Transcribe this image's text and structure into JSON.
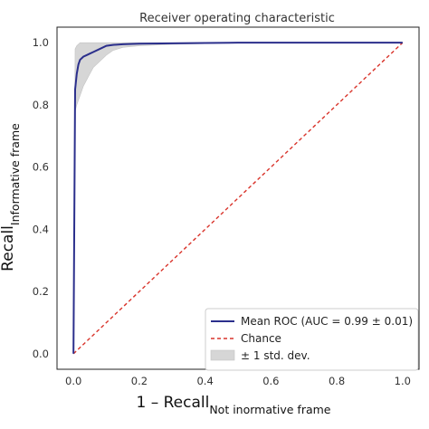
{
  "chart_data": {
    "type": "line",
    "title": "Receiver operating characteristic",
    "xlabel": {
      "main": "1 – Recall",
      "sub": "Not inormative frame"
    },
    "ylabel": {
      "main": "Recall",
      "sub": "Informative frame"
    },
    "xlim": [
      -0.05,
      1.05
    ],
    "ylim": [
      -0.05,
      1.05
    ],
    "xticks": [
      "0.0",
      "0.2",
      "0.4",
      "0.6",
      "0.8",
      "1.0"
    ],
    "yticks": [
      "0.0",
      "0.2",
      "0.4",
      "0.6",
      "0.8",
      "1.0"
    ],
    "grid": false,
    "legend_position": "lower-right",
    "series": [
      {
        "name": "Mean ROC (AUC = 0.99 ± 0.01)",
        "style": "solid",
        "color": "#2b2f8c",
        "x": [
          0.0,
          0.005,
          0.01,
          0.015,
          0.02,
          0.03,
          0.04,
          0.05,
          0.06,
          0.08,
          0.1,
          0.12,
          0.15,
          0.2,
          0.3,
          0.4,
          0.5,
          1.0
        ],
        "y": [
          0.0,
          0.85,
          0.9,
          0.93,
          0.945,
          0.955,
          0.96,
          0.965,
          0.97,
          0.98,
          0.99,
          0.993,
          0.995,
          0.997,
          0.998,
          0.999,
          1.0,
          1.0
        ]
      },
      {
        "name": "Chance",
        "style": "dashed",
        "color": "#d9342b",
        "x": [
          0.0,
          1.0
        ],
        "y": [
          0.0,
          1.0
        ]
      }
    ],
    "band": {
      "name": "± 1 std. dev.",
      "color": "#cfcfcf",
      "x": [
        0.0,
        0.005,
        0.01,
        0.02,
        0.03,
        0.04,
        0.05,
        0.06,
        0.08,
        0.1,
        0.12,
        0.15,
        0.2,
        0.3,
        0.4,
        0.5,
        1.0
      ],
      "upper": [
        0.0,
        0.98,
        0.99,
        1.0,
        1.0,
        1.0,
        1.0,
        1.0,
        1.0,
        1.0,
        1.0,
        1.0,
        1.0,
        1.0,
        1.0,
        1.0,
        1.0
      ],
      "lower": [
        0.0,
        0.78,
        0.8,
        0.83,
        0.86,
        0.88,
        0.9,
        0.92,
        0.94,
        0.96,
        0.975,
        0.985,
        0.99,
        0.995,
        0.997,
        1.0,
        1.0
      ]
    }
  }
}
